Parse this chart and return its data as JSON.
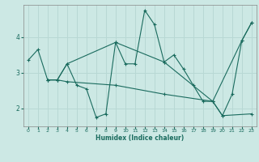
{
  "xlabel": "Humidex (Indice chaleur)",
  "bg_color": "#cce8e4",
  "line_color": "#1a6b5e",
  "grid_color": "#b8d8d4",
  "xlim": [
    -0.5,
    23.5
  ],
  "ylim": [
    1.5,
    4.9
  ],
  "yticks": [
    2,
    3,
    4
  ],
  "xticks": [
    0,
    1,
    2,
    3,
    4,
    5,
    6,
    7,
    8,
    9,
    10,
    11,
    12,
    13,
    14,
    15,
    16,
    17,
    18,
    19,
    20,
    21,
    22,
    23
  ],
  "line1_x": [
    0,
    1,
    2,
    3,
    4,
    5,
    6,
    7,
    8,
    9,
    10,
    11,
    12,
    13,
    14,
    15,
    16,
    17,
    18,
    19,
    20,
    21,
    22,
    23
  ],
  "line1_y": [
    3.35,
    3.65,
    2.8,
    2.8,
    3.25,
    2.65,
    2.55,
    1.75,
    1.85,
    3.85,
    3.25,
    3.25,
    4.75,
    4.35,
    3.3,
    3.5,
    3.1,
    2.65,
    2.2,
    2.2,
    1.8,
    2.4,
    3.9,
    4.4
  ],
  "line2_x": [
    2,
    3,
    4,
    9,
    14,
    19,
    22,
    23
  ],
  "line2_y": [
    2.8,
    2.8,
    3.25,
    3.85,
    3.3,
    2.2,
    3.9,
    4.4
  ],
  "line3_x": [
    2,
    3,
    4,
    9,
    14,
    19,
    20,
    23
  ],
  "line3_y": [
    2.8,
    2.8,
    2.75,
    2.65,
    2.4,
    2.2,
    1.8,
    1.85
  ]
}
